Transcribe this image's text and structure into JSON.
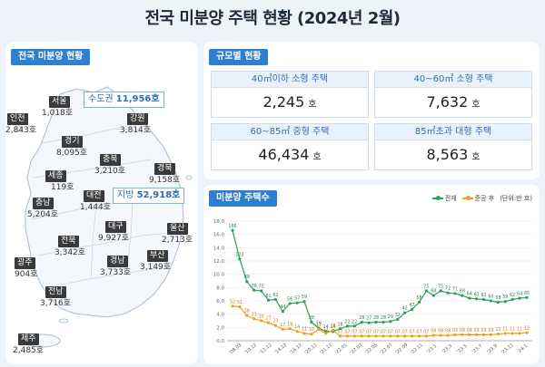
{
  "title": "전국 미분양 주택 현황 (2024년 2월)",
  "map_panel": {
    "tag": "전국 미분양 현황",
    "regions": [
      {
        "name": "서울",
        "value": "1,018호"
      },
      {
        "name": "인천",
        "value": "2,843호"
      },
      {
        "name": "경기",
        "value": "8,095호"
      },
      {
        "name": "강원",
        "value": "3,814호"
      },
      {
        "name": "충북",
        "value": "3,210호"
      },
      {
        "name": "세종",
        "value": "119호"
      },
      {
        "name": "경북",
        "value": "9,158호"
      },
      {
        "name": "충남",
        "value": "5,204호"
      },
      {
        "name": "대전",
        "value": "1,444호"
      },
      {
        "name": "대구",
        "value": "9,927호"
      },
      {
        "name": "울산",
        "value": "2,713호"
      },
      {
        "name": "전북",
        "value": "3,342호"
      },
      {
        "name": "경남",
        "value": "3,733호"
      },
      {
        "name": "부산",
        "value": "3,149호"
      },
      {
        "name": "광주",
        "value": "904호"
      },
      {
        "name": "전남",
        "value": "3,716호"
      },
      {
        "name": "제주",
        "value": "2,485호"
      }
    ],
    "capital_area": {
      "label": "수도권",
      "value": "11,956호"
    },
    "provinces": {
      "label": "지방",
      "value": "52,918호"
    }
  },
  "size_panel": {
    "tag": "규모별 현황",
    "cells": [
      {
        "label": "40㎡이하 소형 주택",
        "value": "2,245",
        "unit": "호"
      },
      {
        "label": "40~60㎡ 소형 주택",
        "value": "7,632",
        "unit": "호"
      },
      {
        "label": "60~85㎡ 중형 주택",
        "value": "46,434",
        "unit": "호"
      },
      {
        "label": "85㎡초과 대형 주택",
        "value": "8,563",
        "unit": "호"
      }
    ]
  },
  "chart_panel": {
    "tag": "미분양 주택수",
    "legend": {
      "total": "전체",
      "completed": "준공 후",
      "unit_note": "(단위:만 호)"
    }
  },
  "colors": {
    "total": "#2e9e5b",
    "completed": "#f0a020",
    "accent": "#2e7fd0"
  },
  "chart_data": {
    "type": "line",
    "ylim": [
      0,
      18
    ],
    "y_ticks": [
      "0.0",
      "2.0",
      "4.0",
      "6.0",
      "8.0",
      "10.0",
      "12.0",
      "14.0",
      "16.0",
      "18.0"
    ],
    "x_tick_labels": [
      "'08.03",
      "'10.12",
      "'12.12",
      "'14.12",
      "'16.12",
      "'20.12",
      "'21.11",
      "'22.01",
      "'22.03",
      "'22.05",
      "'22.07",
      "'22.09",
      "'22.11",
      "'23.1",
      "'23.3",
      "'23.5",
      "'23.7",
      "'23.9",
      "'23.11",
      "'24.1"
    ],
    "series": [
      {
        "name": "전체",
        "labels": [
          "166",
          "123",
          "89",
          "76",
          "75",
          "61",
          "62",
          "44",
          "56",
          "57",
          "59",
          "28",
          "19",
          "14",
          "14",
          "18",
          "22",
          "22",
          "28",
          "27",
          "28",
          "28",
          "29",
          "32",
          "42",
          "47",
          "58",
          "75",
          "68",
          "75",
          "72",
          "71",
          "68",
          "64",
          "63",
          "62",
          "60",
          "58",
          "59",
          "62",
          "64",
          "65"
        ],
        "values": [
          16.6,
          12.3,
          8.9,
          7.6,
          7.5,
          6.1,
          6.2,
          4.4,
          5.6,
          5.7,
          5.9,
          2.8,
          1.9,
          1.4,
          1.4,
          1.8,
          2.2,
          2.2,
          2.8,
          2.7,
          2.8,
          2.8,
          2.9,
          3.2,
          4.2,
          4.7,
          5.8,
          7.5,
          6.8,
          7.5,
          7.2,
          7.1,
          6.8,
          6.4,
          6.3,
          6.2,
          6.0,
          5.8,
          5.9,
          6.2,
          6.4,
          6.5
        ]
      },
      {
        "name": "준공 후",
        "labels": [
          "52",
          "51",
          "38",
          "33",
          "30",
          "27",
          "23",
          "17",
          "18",
          "14",
          "11",
          "10",
          "17",
          "11",
          "16",
          "07",
          "07",
          "07",
          "07",
          "07",
          "07",
          "07",
          "07",
          "07",
          "07",
          "07",
          "07",
          "07",
          "08",
          "08",
          "08",
          "09",
          "09",
          "09",
          "09",
          "09",
          "09",
          "10",
          "11",
          "11",
          "11",
          "12"
        ],
        "values": [
          5.2,
          5.1,
          3.8,
          3.3,
          3.0,
          2.7,
          2.3,
          1.7,
          1.8,
          1.4,
          1.1,
          1.0,
          1.7,
          1.1,
          1.6,
          0.7,
          0.7,
          0.7,
          0.7,
          0.7,
          0.7,
          0.7,
          0.7,
          0.7,
          0.7,
          0.7,
          0.7,
          0.7,
          0.8,
          0.8,
          0.8,
          0.9,
          0.9,
          0.9,
          0.9,
          0.9,
          0.9,
          1.0,
          1.1,
          1.1,
          1.1,
          1.2
        ]
      }
    ]
  }
}
